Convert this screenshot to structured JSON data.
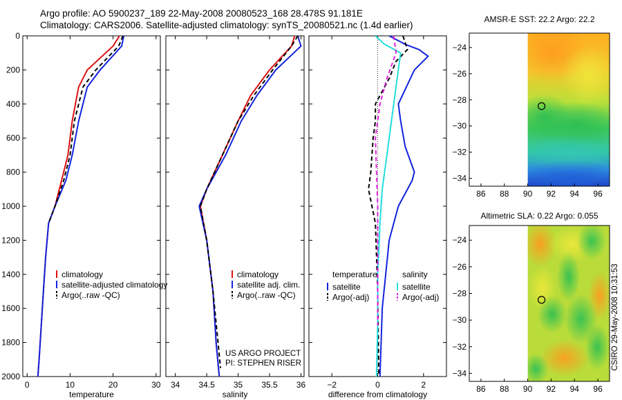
{
  "header": {
    "line1": "Argo profile: AO 5900237_189 22-May-2008 20080523_168 28.478S 91.181E",
    "line2": "Climatology: CARS2006. Satellite-adjusted climatology: synTS_20080521.nc (1.4d earlier)"
  },
  "side_label": "CSIRO 29-May-2008 10:31:53",
  "colors": {
    "climatology": "#dd1111",
    "satellite": "#1122dd",
    "argo": "#000000",
    "cyan": "#22dddd",
    "magenta": "#dd22dd"
  },
  "chart_data": [
    {
      "type": "line",
      "xlabel": "temperature",
      "xlim": [
        -1,
        31
      ],
      "xticks": [
        0,
        10,
        20,
        30
      ],
      "ylim": [
        0,
        2000
      ],
      "yticks": [
        0,
        200,
        400,
        600,
        800,
        1000,
        1200,
        1400,
        1600,
        1800,
        2000
      ],
      "y_inverted": true,
      "show_y_ticklabels": true,
      "legend": [
        "climatology",
        "satellite-adjusted climatology",
        "Argo(..raw -QC)"
      ],
      "series": [
        {
          "name": "climatology",
          "color": "#dd1111",
          "style": "solid",
          "x": [
            21.5,
            20,
            14,
            12,
            10.5,
            9.5,
            8.5,
            6.5,
            5,
            4.3,
            3.8,
            3.3,
            2.8,
            2.5
          ],
          "y": [
            0,
            60,
            200,
            300,
            500,
            700,
            800,
            1000,
            1100,
            1300,
            1500,
            1700,
            1900,
            2000
          ]
        },
        {
          "name": "satellite-adjusted climatology",
          "color": "#1122dd",
          "style": "solid",
          "x": [
            22.5,
            22,
            17,
            14,
            12,
            10.5,
            9,
            6.5,
            5,
            4.3,
            3.8,
            3.3,
            2.8,
            2.5
          ],
          "y": [
            0,
            60,
            200,
            300,
            500,
            700,
            850,
            1000,
            1100,
            1300,
            1500,
            1700,
            1900,
            2000
          ]
        },
        {
          "name": "Argo(..raw -QC)",
          "color": "#000000",
          "style": "dashed",
          "x": [
            22.3,
            21.3,
            16,
            13,
            11,
            10,
            8.5,
            6.5,
            5
          ],
          "y": [
            0,
            60,
            200,
            300,
            500,
            700,
            850,
            1000,
            1100
          ]
        }
      ]
    },
    {
      "type": "line",
      "xlabel": "salinity",
      "xlim": [
        33.85,
        36.05
      ],
      "xticks": [
        34,
        34.5,
        35,
        35.5,
        36
      ],
      "ylim": [
        0,
        2000
      ],
      "y_inverted": true,
      "show_y_ticklabels": false,
      "legend": [
        "climatology",
        "satellite adj. clim.",
        "Argo(..raw -QC)"
      ],
      "annotations": [
        "US ARGO PROJECT",
        "PI: STEPHEN RISER"
      ],
      "series": [
        {
          "name": "climatology",
          "color": "#dd1111",
          "style": "solid",
          "x": [
            35.9,
            35.85,
            35.5,
            35.2,
            35,
            34.75,
            34.5,
            34.4,
            34.5,
            34.6,
            34.65,
            34.7
          ],
          "y": [
            0,
            60,
            200,
            350,
            500,
            700,
            900,
            1000,
            1200,
            1500,
            1800,
            2000
          ]
        },
        {
          "name": "satellite adj. clim.",
          "color": "#1122dd",
          "style": "solid",
          "x": [
            35.95,
            36,
            35.6,
            35.3,
            35.05,
            34.8,
            34.5,
            34.38,
            34.5,
            34.6,
            34.65,
            34.7
          ],
          "y": [
            0,
            60,
            200,
            350,
            500,
            700,
            900,
            1000,
            1200,
            1500,
            1800,
            2000
          ]
        },
        {
          "name": "Argo(..raw -QC)",
          "color": "#000000",
          "style": "dashed",
          "x": [
            35.95,
            35.85,
            35.55,
            35.25,
            35,
            34.75,
            34.5,
            34.4,
            34.5,
            34.6,
            34.68,
            34.72
          ],
          "y": [
            0,
            60,
            200,
            350,
            500,
            700,
            900,
            1000,
            1200,
            1500,
            1800,
            1950
          ]
        }
      ]
    },
    {
      "type": "line",
      "xlabel": "difference from climatology",
      "xlim": [
        -3,
        3
      ],
      "xticks": [
        -2,
        0,
        2
      ],
      "ylim": [
        0,
        2000
      ],
      "y_inverted": true,
      "show_y_ticklabels": false,
      "legend_temperature_heading": "temperature",
      "legend_salinity_heading": "salinity",
      "legend": [
        "satellite",
        "Argo(-adj)",
        "satellite",
        "Argo(-adj)"
      ],
      "series": [
        {
          "name": "satellite",
          "color": "#1122dd",
          "style": "solid",
          "x": [
            0.5,
            1.2,
            1.8,
            2.2,
            1.6,
            0.9,
            1.0,
            1.2,
            1.6,
            1.5,
            0.9,
            0.5,
            0.2,
            0.1
          ],
          "y": [
            0,
            50,
            80,
            120,
            200,
            400,
            500,
            650,
            800,
            850,
            1000,
            1200,
            1600,
            2000
          ]
        },
        {
          "name": "Argo(-adj)",
          "color": "#000000",
          "style": "dashed",
          "x": [
            1.1,
            1.3,
            0.8,
            0.5,
            -0.1,
            -0.1,
            -0.2,
            -0.3,
            -0.4,
            -0.1,
            0,
            0.05
          ],
          "y": [
            0,
            80,
            150,
            250,
            400,
            500,
            600,
            800,
            900,
            1100,
            1500,
            2000
          ]
        },
        {
          "name": "satellite",
          "color": "#22dddd",
          "style": "solid",
          "x": [
            -0.1,
            0.3,
            1.0,
            0.8,
            0.6,
            0.4,
            0.2,
            0.1,
            0,
            0,
            -0.05
          ],
          "y": [
            0,
            50,
            100,
            300,
            500,
            700,
            900,
            1100,
            1400,
            1700,
            2000
          ]
        },
        {
          "name": "Argo(-adj)",
          "color": "#dd22dd",
          "style": "dashed",
          "x": [
            0.7,
            0.8,
            0.4,
            0.1,
            -0.1,
            -0.05,
            0,
            0,
            0
          ],
          "y": [
            0,
            100,
            250,
            400,
            600,
            800,
            1000,
            1400,
            1700
          ]
        }
      ]
    },
    {
      "type": "heatmap",
      "title": "AMSR-E SST: 22.2 Argo: 22.2",
      "xlim": [
        85,
        97
      ],
      "xticks": [
        86,
        88,
        90,
        92,
        94,
        96
      ],
      "ylim": [
        -34.6,
        -22.9
      ],
      "yticks": [
        -24,
        -26,
        -28,
        -30,
        -32,
        -34
      ],
      "data_x_range": [
        90,
        97
      ],
      "marker": {
        "lon": 91.181,
        "lat": -28.478
      }
    },
    {
      "type": "heatmap",
      "title": "Altimetric SLA: 0.22 Argo: 0.055",
      "xlim": [
        85,
        97
      ],
      "xticks": [
        86,
        88,
        90,
        92,
        94,
        96
      ],
      "ylim": [
        -34.6,
        -22.9
      ],
      "yticks": [
        -24,
        -26,
        -28,
        -30,
        -32,
        -34
      ],
      "data_x_range": [
        90,
        97
      ],
      "marker": {
        "lon": 91.181,
        "lat": -28.478
      }
    }
  ]
}
